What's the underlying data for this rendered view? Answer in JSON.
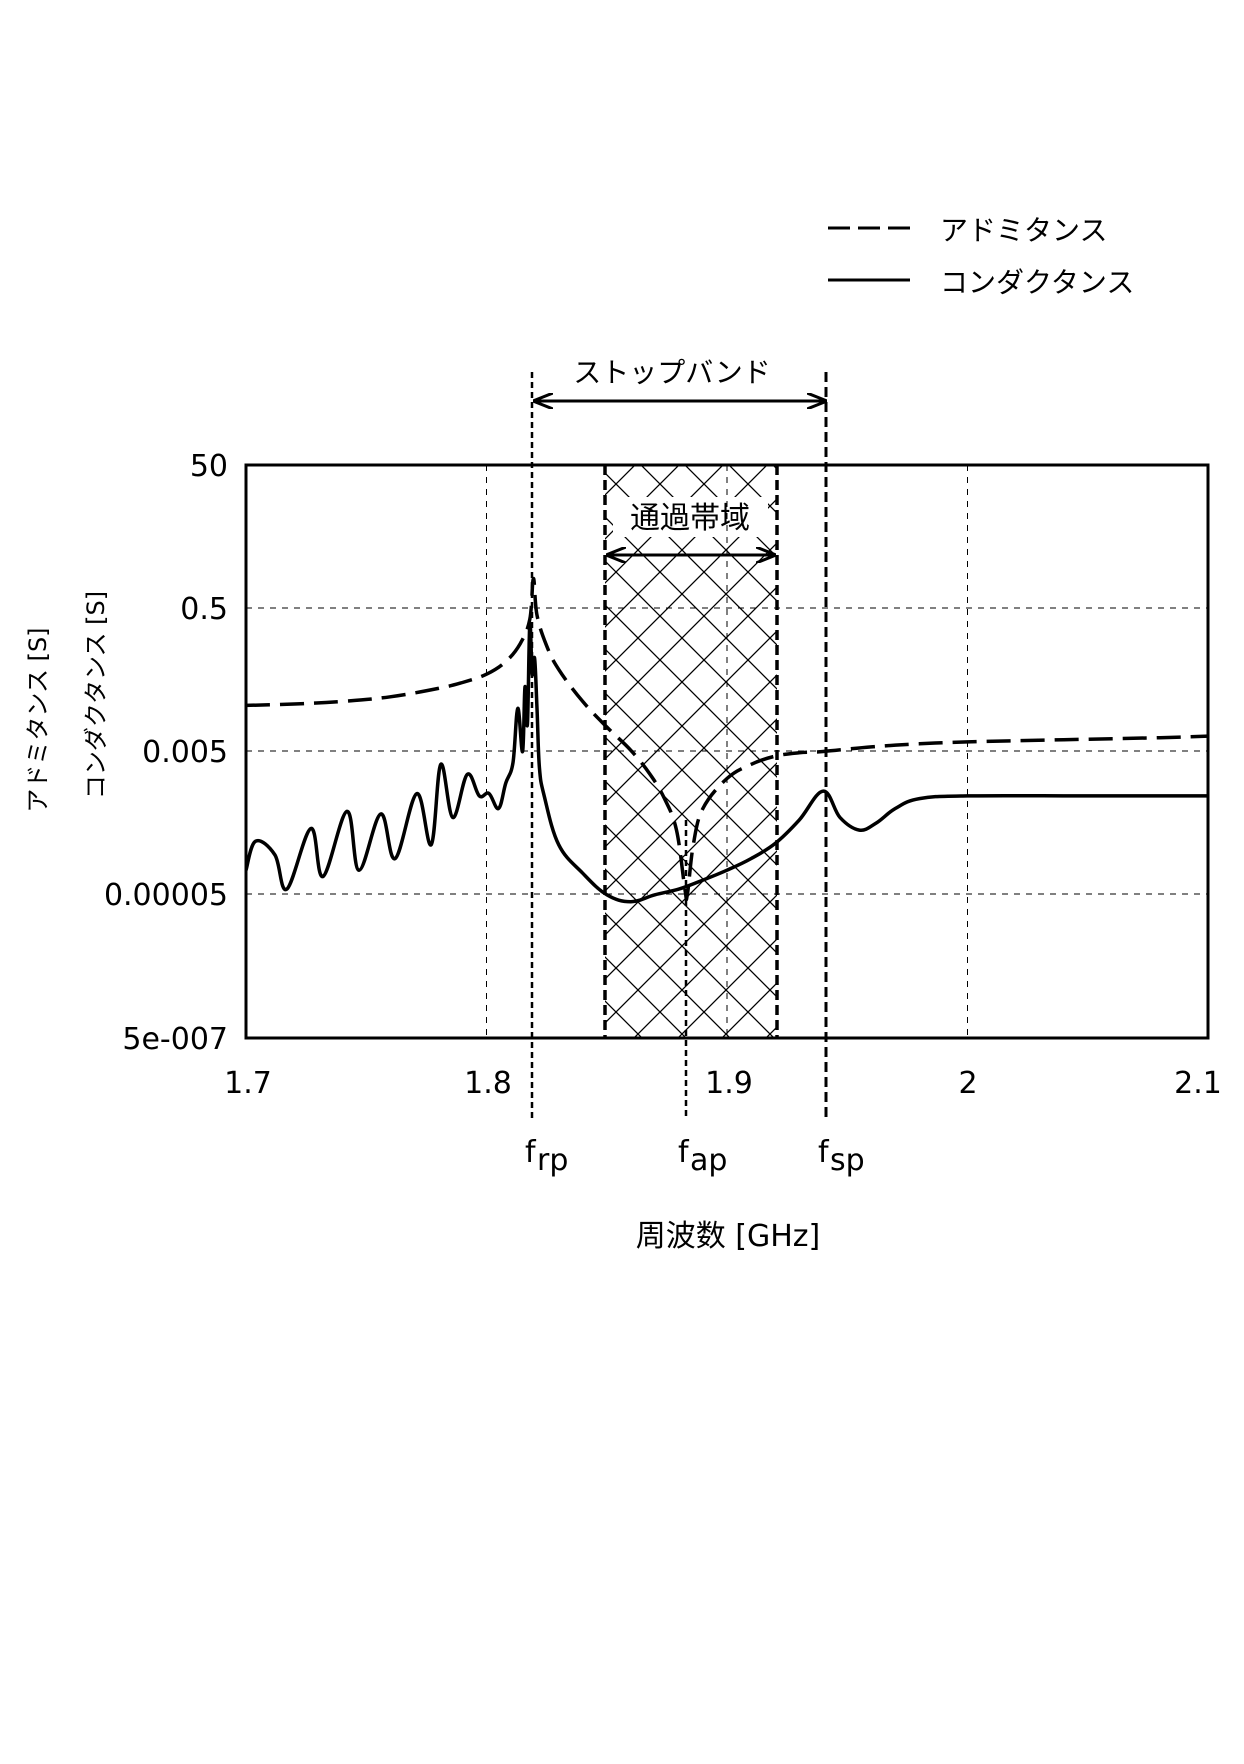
{
  "chart_data": {
    "type": "line",
    "title": "",
    "xlabel": "周波数 [GHz]",
    "ylabel": [
      "アドミタンス [S]",
      "コンダクタンス [S]"
    ],
    "xscale": "linear",
    "yscale": "log",
    "xlim": [
      1.7,
      2.1
    ],
    "ylim": [
      5e-07,
      50
    ],
    "x_ticks": [
      1.7,
      1.8,
      1.9,
      2.0,
      2.1
    ],
    "x_tick_labels": [
      "1.7",
      "1.8",
      "1.9",
      "2",
      "2.1"
    ],
    "y_ticks": [
      5e-07,
      5e-05,
      0.005,
      0.5,
      50
    ],
    "y_tick_labels": [
      "5e-007",
      "0.00005",
      "0.005",
      "0.5",
      "50"
    ],
    "grid": true,
    "legend": {
      "position": "top-right, outside plot",
      "entries": [
        {
          "label": "アドミタンス",
          "style": "dashed"
        },
        {
          "label": "コンダクタンス",
          "style": "solid"
        }
      ]
    },
    "series": [
      {
        "name": "アドミタンス",
        "style": "dashed",
        "x": [
          1.7,
          1.72,
          1.74,
          1.76,
          1.78,
          1.79,
          1.8,
          1.808,
          1.814,
          1.818,
          1.8195,
          1.821,
          1.825,
          1.83,
          1.84,
          1.85,
          1.86,
          1.868,
          1.874,
          1.879,
          1.8825,
          1.8835,
          1.886,
          1.89,
          1.9,
          1.91,
          1.92,
          1.93,
          1.94,
          1.96,
          1.98,
          2.0,
          2.04,
          2.08,
          2.1
        ],
        "y": [
          0.022,
          0.023,
          0.025,
          0.029,
          0.038,
          0.046,
          0.06,
          0.09,
          0.16,
          0.35,
          1.3,
          0.4,
          0.15,
          0.07,
          0.025,
          0.011,
          0.0052,
          0.0024,
          0.0011,
          0.0004,
          6e-05,
          5e-05,
          0.00025,
          0.0008,
          0.0021,
          0.0033,
          0.0043,
          0.0048,
          0.005,
          0.0058,
          0.0064,
          0.0068,
          0.0073,
          0.0078,
          0.0082
        ]
      },
      {
        "name": "コンダクタンス",
        "style": "solid",
        "x": [
          1.7,
          1.704,
          1.712,
          1.717,
          1.727,
          1.732,
          1.742,
          1.747,
          1.756,
          1.762,
          1.771,
          1.777,
          1.781,
          1.786,
          1.792,
          1.797,
          1.801,
          1.805,
          1.808,
          1.811,
          1.813,
          1.815,
          1.816,
          1.817,
          1.818,
          1.819,
          1.82,
          1.821,
          1.822,
          1.824,
          1.83,
          1.84,
          1.85,
          1.86,
          1.87,
          1.88,
          1.89,
          1.9,
          1.91,
          1.92,
          1.93,
          1.94,
          1.947,
          1.955,
          1.962,
          1.97,
          1.98,
          2.0,
          2.05,
          2.1
        ],
        "y": [
          0.00011,
          0.00028,
          0.00018,
          6e-05,
          0.00042,
          9e-05,
          0.00073,
          0.00011,
          0.00067,
          0.00016,
          0.00129,
          0.00025,
          0.0033,
          0.0006,
          0.0024,
          0.0012,
          0.0013,
          0.0008,
          0.0018,
          0.0035,
          0.02,
          0.005,
          0.04,
          0.012,
          0.3,
          0.06,
          0.1,
          0.02,
          0.003,
          0.0012,
          0.00025,
          0.0001,
          5e-05,
          4e-05,
          5e-05,
          6e-05,
          8e-05,
          0.00011,
          0.00016,
          0.00026,
          0.00055,
          0.0014,
          0.0006,
          0.0004,
          0.0005,
          0.0008,
          0.0011,
          0.0012,
          0.0012,
          0.0012
        ]
      }
    ],
    "annotations": {
      "markers": [
        {
          "label": "f",
          "sub": "rp",
          "x": 1.819
        },
        {
          "label": "f",
          "sub": "ap",
          "x": 1.883
        },
        {
          "label": "f",
          "sub": "sp",
          "x": 1.941
        }
      ],
      "stopband": {
        "label": "ストップバンド",
        "x_from": 1.819,
        "x_to": 1.941
      },
      "passband": {
        "label": "通過帯域",
        "x_from": 1.849,
        "x_to": 1.921,
        "fill": "crosshatch"
      }
    }
  },
  "labels": {
    "legend_admittance": "アドミタンス",
    "legend_conductance": "コンダクタンス",
    "stopband": "ストップバンド",
    "passband": "通過帯域",
    "ylabel_1": "アドミタンス [S]",
    "ylabel_2": "コンダクタンス [S]",
    "xlabel": "周波数 [GHz]",
    "f": "f",
    "sub_rp": "rp",
    "sub_ap": "ap",
    "sub_sp": "sp",
    "xtick_0": "1.7",
    "xtick_1": "1.8",
    "xtick_2": "1.9",
    "xtick_3": "2",
    "xtick_4": "2.1",
    "ytick_0": "50",
    "ytick_1": "0.5",
    "ytick_2": "0.005",
    "ytick_3": "0.00005",
    "ytick_4": "5e-007"
  },
  "colors": {
    "ink": "#000000",
    "background": "#ffffff"
  }
}
